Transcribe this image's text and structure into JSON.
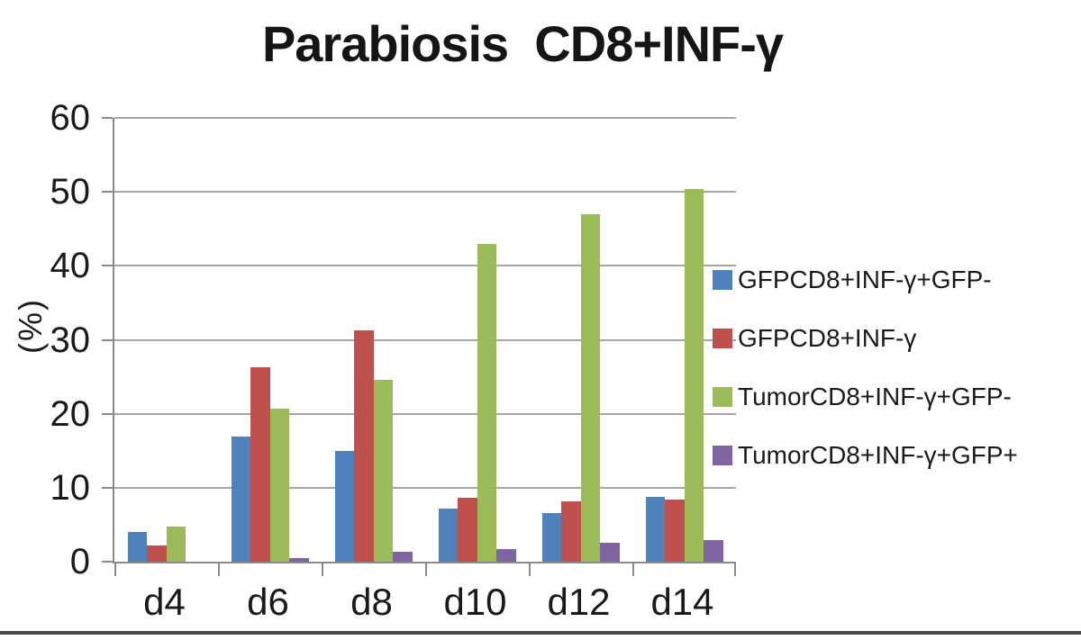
{
  "chart_data": {
    "type": "bar",
    "title": "Parabiosis  CD8+INF-γ",
    "xlabel": "",
    "ylabel": "(%)",
    "ylim": [
      0,
      60
    ],
    "yticks": [
      "60",
      "50",
      "40",
      "30",
      "20",
      "10",
      "0"
    ],
    "grid": true,
    "legend_position": "right",
    "categories": [
      "d4",
      "d6",
      "d8",
      "d10",
      "d12",
      "d14"
    ],
    "series": [
      {
        "name": "GFPCD8+INF-γ+GFP-",
        "color": "#4F81BD",
        "values": [
          4.0,
          16.9,
          15.0,
          7.2,
          6.6,
          8.8
        ]
      },
      {
        "name": "GFPCD8+INF-γ",
        "color": "#C0504D",
        "values": [
          2.2,
          26.3,
          31.3,
          8.6,
          8.2,
          8.4
        ]
      },
      {
        "name": "TumorCD8+INF-γ+GFP-",
        "color": "#9BBB59",
        "values": [
          4.8,
          20.7,
          24.6,
          43.0,
          47.0,
          50.4
        ]
      },
      {
        "name": "TumorCD8+INF-γ+GFP+",
        "color": "#8064A2",
        "values": [
          0.0,
          0.5,
          1.4,
          1.7,
          2.6,
          2.9
        ]
      }
    ],
    "colors": {
      "axis": "#8a8a8a",
      "gridline": "#a6a6a6",
      "title_text": "#151515",
      "bottom_rule": "#484848"
    }
  }
}
